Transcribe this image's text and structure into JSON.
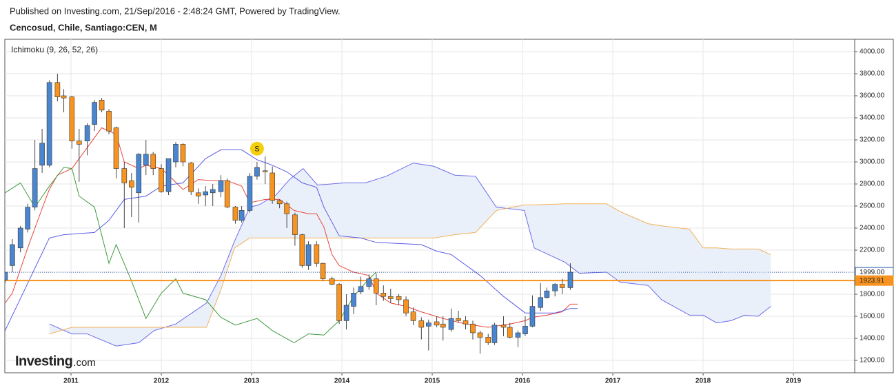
{
  "header": {
    "published": "Published on Investing.com, 21/Sep/2016 - 2:48:24 GMT, Powered by TradingView.",
    "symbol": "Cencosud, Chile, Santiago:CEN, M"
  },
  "chart_data": {
    "type": "candlestick",
    "indicator_label": "Ichimoku (9, 26, 52, 26)",
    "logo": "Investing",
    "logo_suffix": ".com",
    "x": [
      2010.27,
      2010.35,
      2010.44,
      2010.52,
      2010.6,
      2010.68,
      2010.76,
      2010.85,
      2010.92,
      2011.01,
      2011.09,
      2011.18,
      2011.26,
      2011.34,
      2011.42,
      2011.5,
      2011.59,
      2011.67,
      2011.75,
      2011.83,
      2011.91,
      2012.0,
      2012.08,
      2012.16,
      2012.24,
      2012.33,
      2012.41,
      2012.49,
      2012.57,
      2012.66,
      2012.73,
      2012.82,
      2012.89,
      2012.98,
      2013.06,
      2013.15,
      2013.23,
      2013.31,
      2013.39,
      2013.48,
      2013.56,
      2013.63,
      2013.72,
      2013.79,
      2013.89,
      2013.97,
      2014.05,
      2014.13,
      2014.21,
      2014.3,
      2014.38,
      2014.46,
      2014.54,
      2014.63,
      2014.71,
      2014.79,
      2014.88,
      2014.96,
      2015.05,
      2015.12,
      2015.21,
      2015.29,
      2015.37,
      2015.45,
      2015.53,
      2015.62,
      2015.69,
      2015.79,
      2015.86,
      2015.95,
      2016.03,
      2016.11,
      2016.2,
      2016.27,
      2016.36,
      2016.44,
      2016.53
    ],
    "open": [
      1930,
      2060,
      2220,
      2390,
      2590,
      2970,
      2970,
      3720,
      3600,
      3590,
      3190,
      3190,
      3340,
      3560,
      3460,
      3310,
      2940,
      2830,
      2720,
      2970,
      3070,
      2940,
      2730,
      3000,
      3160,
      2990,
      2720,
      2700,
      2720,
      2730,
      2830,
      2590,
      2470,
      2560,
      2870,
      2920,
      2900,
      2650,
      2620,
      2520,
      2340,
      2060,
      2250,
      2080,
      1940,
      1890,
      1560,
      1690,
      1820,
      1870,
      1940,
      1810,
      1780,
      1780,
      1750,
      1640,
      1560,
      1510,
      1550,
      1530,
      1480,
      1580,
      1560,
      1530,
      1450,
      1410,
      1360,
      1520,
      1500,
      1410,
      1440,
      1510,
      1680,
      1770,
      1830,
      1890,
      1860
    ],
    "high": [
      2000,
      2300,
      2420,
      2620,
      3200,
      3300,
      3740,
      3800,
      3660,
      3600,
      3300,
      3350,
      3560,
      3580,
      3480,
      3320,
      3000,
      2900,
      3080,
      3200,
      3090,
      2980,
      3030,
      3180,
      3170,
      3000,
      2760,
      2780,
      2800,
      2880,
      2850,
      2600,
      2600,
      2900,
      3000,
      3050,
      2960,
      2660,
      2640,
      2540,
      2350,
      2280,
      2280,
      2090,
      1960,
      1900,
      1800,
      1860,
      1960,
      1980,
      1990,
      1880,
      1850,
      1800,
      1780,
      1680,
      1590,
      1570,
      1600,
      1600,
      1670,
      1650,
      1600,
      1560,
      1470,
      1440,
      1540,
      1600,
      1540,
      1470,
      1600,
      1790,
      1900,
      1860,
      1900,
      1940,
      2080
    ],
    "low": [
      1900,
      2000,
      2180,
      2360,
      2560,
      2900,
      2950,
      3550,
      3450,
      3120,
      2820,
      3060,
      3280,
      3450,
      3250,
      2850,
      2400,
      2500,
      2450,
      2880,
      2880,
      2720,
      2700,
      2950,
      2960,
      2700,
      2620,
      2600,
      2600,
      2680,
      2580,
      2440,
      2450,
      2540,
      2840,
      2800,
      2620,
      2580,
      2400,
      2240,
      2040,
      2020,
      2050,
      1920,
      1880,
      1530,
      1480,
      1620,
      1800,
      1840,
      1700,
      1740,
      1720,
      1700,
      1600,
      1520,
      1390,
      1290,
      1500,
      1380,
      1460,
      1540,
      1480,
      1390,
      1260,
      1340,
      1340,
      1420,
      1400,
      1320,
      1420,
      1500,
      1650,
      1760,
      1780,
      1800,
      1840
    ],
    "close": [
      2000,
      2250,
      2400,
      2590,
      2940,
      3170,
      3720,
      3590,
      3580,
      3190,
      3160,
      3330,
      3540,
      3470,
      3280,
      2940,
      2810,
      2770,
      3070,
      3070,
      2940,
      2730,
      3030,
      3160,
      3000,
      2730,
      2690,
      2730,
      2750,
      2830,
      2590,
      2470,
      2560,
      2870,
      2950,
      2910,
      2650,
      2620,
      2530,
      2340,
      2060,
      2250,
      2080,
      1940,
      1890,
      1560,
      1700,
      1810,
      1870,
      1940,
      1810,
      1780,
      1760,
      1750,
      1630,
      1560,
      1500,
      1540,
      1520,
      1500,
      1580,
      1560,
      1530,
      1450,
      1410,
      1360,
      1520,
      1500,
      1410,
      1450,
      1510,
      1690,
      1770,
      1830,
      1890,
      1860,
      2000
    ],
    "up_color": "#4a86d0",
    "down_color": "#f7931e",
    "lines": [
      {
        "color": "#e8433a",
        "x": [
          2010.27,
          2010.35,
          2010.52,
          2010.69,
          2010.76,
          2010.85,
          2011.01,
          2011.18,
          2011.34,
          2011.42,
          2011.5,
          2011.59,
          2011.75,
          2011.83,
          2012.0,
          2012.08,
          2012.24,
          2012.41,
          2012.57,
          2012.73,
          2012.89,
          2012.98,
          2013.15,
          2013.31,
          2013.47,
          2013.63,
          2013.72,
          2013.8,
          2013.89,
          2013.97,
          2014.13,
          2014.3,
          2014.38,
          2014.54,
          2014.71,
          2014.88,
          2015.12,
          2015.37,
          2015.62,
          2015.86,
          2016.03,
          2016.11,
          2016.27,
          2016.44,
          2016.53,
          2016.61
        ],
        "values": [
          1720,
          1810,
          2220,
          2600,
          2750,
          2880,
          2940,
          3130,
          3310,
          3280,
          3250,
          3000,
          2940,
          2970,
          2940,
          2880,
          2750,
          2840,
          2830,
          2830,
          2780,
          2630,
          2660,
          2660,
          2560,
          2530,
          2530,
          2410,
          2160,
          2060,
          2000,
          1970,
          1810,
          1720,
          1690,
          1640,
          1580,
          1530,
          1500,
          1530,
          1560,
          1590,
          1610,
          1640,
          1710,
          1710
        ]
      },
      {
        "color": "#5b5be6",
        "x": [
          2010.27,
          2010.76,
          2010.92,
          2011.26,
          2011.42,
          2011.59,
          2011.83,
          2012.0,
          2012.24,
          2012.49,
          2012.66,
          2012.89,
          2013.06,
          2013.23,
          2013.39,
          2013.56,
          2013.72,
          2013.8,
          2013.97,
          2014.21,
          2014.38,
          2014.88,
          2015.05,
          2015.21,
          2015.53,
          2015.79,
          2016.03,
          2016.2,
          2016.36,
          2016.53,
          2016.61
        ],
        "values": [
          1470,
          2310,
          2340,
          2360,
          2470,
          2660,
          2690,
          2780,
          2810,
          3030,
          3110,
          3110,
          3020,
          2970,
          2910,
          2810,
          2770,
          2590,
          2330,
          2310,
          2270,
          2250,
          2190,
          2160,
          1970,
          1780,
          1630,
          1630,
          1630,
          1670,
          1670
        ]
      },
      {
        "color": "#3e9a3e",
        "x": [
          2010.27,
          2010.44,
          2010.6,
          2010.76,
          2010.92,
          2011.01,
          2011.09,
          2011.26,
          2011.42,
          2011.5,
          2011.66,
          2011.83,
          2012.0,
          2012.16,
          2012.24,
          2012.49,
          2012.66,
          2012.82,
          2013.06,
          2013.23,
          2013.47,
          2013.63,
          2013.8,
          2013.97,
          2014.13,
          2014.3,
          2014.38
        ],
        "values": [
          2720,
          2810,
          2590,
          2780,
          2950,
          2940,
          2690,
          2590,
          2080,
          2250,
          1940,
          1580,
          1810,
          1940,
          1810,
          1750,
          1590,
          1520,
          1580,
          1470,
          1360,
          1440,
          1430,
          1560,
          1780,
          1940,
          2000
        ]
      }
    ],
    "cloud": {
      "x": [
        2010.76,
        2011.01,
        2011.18,
        2011.5,
        2011.75,
        2011.92,
        2012.16,
        2012.5,
        2012.66,
        2012.81,
        2012.98,
        2013.08,
        2013.27,
        2013.42,
        2013.57,
        2013.73,
        2014.03,
        2014.26,
        2014.49,
        2014.79,
        2015.02,
        2015.25,
        2015.48,
        2015.71,
        2016.02,
        2016.13,
        2016.47,
        2016.63,
        2016.93,
        2017.08,
        2017.39,
        2017.54,
        2017.85,
        2018.0,
        2018.15,
        2018.31,
        2018.46,
        2018.61,
        2018.75
      ],
      "senkou_a": [
        1530,
        1440,
        1440,
        1330,
        1360,
        1470,
        1530,
        1720,
        1970,
        2280,
        2590,
        2610,
        2700,
        2840,
        2940,
        2790,
        2810,
        2810,
        2870,
        2990,
        2960,
        2880,
        2870,
        2590,
        2560,
        2220,
        2090,
        1990,
        2000,
        1910,
        1880,
        1750,
        1610,
        1610,
        1540,
        1560,
        1610,
        1600,
        1690
      ],
      "senkou_b": [
        1440,
        1500,
        1500,
        1500,
        1500,
        1500,
        1500,
        1500,
        1840,
        2220,
        2310,
        2310,
        2310,
        2310,
        2310,
        2310,
        2310,
        2310,
        2310,
        2310,
        2310,
        2340,
        2360,
        2560,
        2610,
        2610,
        2620,
        2620,
        2620,
        2550,
        2440,
        2420,
        2390,
        2220,
        2220,
        2210,
        2210,
        2210,
        2160
      ],
      "color_a": "#6b6bea",
      "color_b": "#f2b25a",
      "fill": "#eaf0f9"
    },
    "price_lines": [
      {
        "value": 1999,
        "label": "1999.00",
        "color": "#3a66b8",
        "style": "dotted"
      },
      {
        "value": 1923.91,
        "label": "1923.91",
        "color": "#f7931e",
        "style": "solid"
      }
    ],
    "annotations": [
      {
        "label": "S",
        "x": 2013.06,
        "y": 3120,
        "color": "#f5cf0b"
      }
    ],
    "xlim": [
      2010.267,
      2019.679
    ],
    "ylim": [
      1087.5,
      4112.5
    ],
    "xticks": [
      2011,
      2012,
      2013,
      2014,
      2015,
      2016,
      2017,
      2018,
      2019
    ],
    "yticks": [
      {
        "value": 1200,
        "label": "1200.00"
      },
      {
        "value": 1400,
        "label": "1400.00"
      },
      {
        "value": 1600,
        "label": "1600.00"
      },
      {
        "value": 1800,
        "label": "1800.00"
      },
      {
        "value": 2000,
        "label": "2000.00"
      },
      {
        "value": 2200,
        "label": "2200.00"
      },
      {
        "value": 2400,
        "label": "2400.00"
      },
      {
        "value": 2600,
        "label": "2600.00"
      },
      {
        "value": 2800,
        "label": "2800.00"
      },
      {
        "value": 3000,
        "label": "3000.00"
      },
      {
        "value": 3200,
        "label": "3200.00"
      },
      {
        "value": 3400,
        "label": "3400.00"
      },
      {
        "value": 3600,
        "label": "3600.00"
      },
      {
        "value": 3800,
        "label": "3800.00"
      },
      {
        "value": 4000,
        "label": "4000.00"
      }
    ],
    "grid": true
  }
}
